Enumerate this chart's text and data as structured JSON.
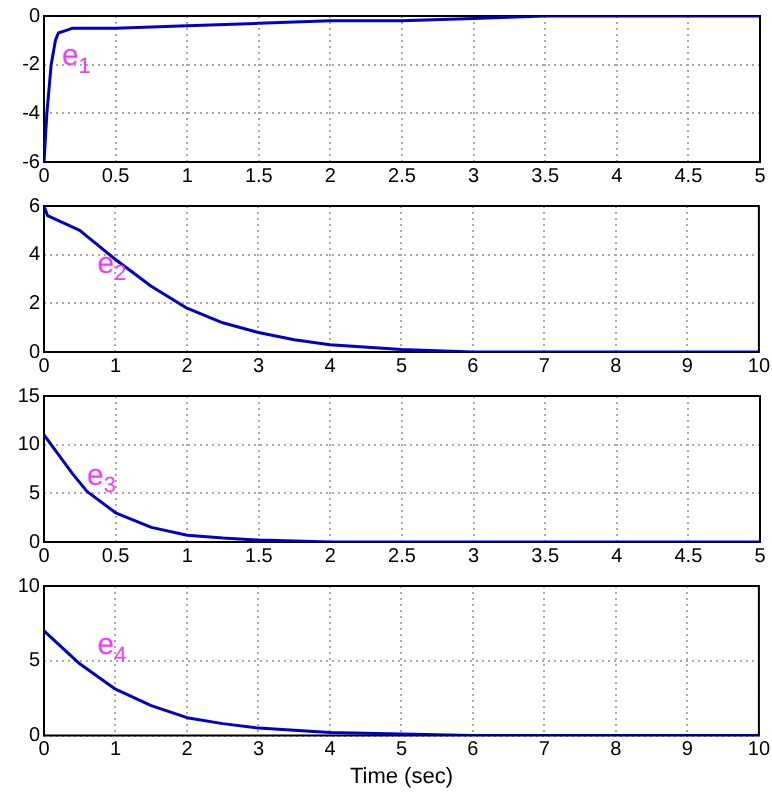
{
  "chart_data": [
    {
      "type": "line",
      "series": [
        {
          "name": "e$_{1}$",
          "color": "#0000cc",
          "x": [
            0,
            0.02,
            0.05,
            0.08,
            0.1,
            0.15,
            0.2,
            0.3,
            0.5,
            1,
            1.5,
            2,
            2.5,
            3,
            3.5,
            4,
            5
          ],
          "values": [
            -6,
            -4,
            -2,
            -1,
            -0.7,
            -0.6,
            -0.5,
            -0.5,
            -0.5,
            -0.4,
            -0.3,
            -0.2,
            -0.2,
            -0.1,
            0,
            0,
            0
          ]
        }
      ],
      "xlim": [
        0,
        5
      ],
      "xticks": [
        0,
        0.5,
        1,
        1.5,
        2,
        2.5,
        3,
        3.5,
        4,
        4.5,
        5
      ],
      "ylim": [
        -6,
        0
      ],
      "yticks": [
        -6,
        -4,
        -2,
        0
      ],
      "grid": true
    },
    {
      "type": "line",
      "series": [
        {
          "name": "e$_{2}$",
          "color": "#0000cc",
          "x": [
            0,
            0.05,
            0.5,
            1,
            1.5,
            2,
            2.5,
            3,
            3.5,
            4,
            5,
            6,
            7,
            8,
            10
          ],
          "values": [
            6,
            5.6,
            5,
            3.8,
            2.7,
            1.8,
            1.2,
            0.8,
            0.5,
            0.3,
            0.1,
            0,
            0,
            0,
            0
          ]
        }
      ],
      "xlim": [
        0,
        10
      ],
      "xticks": [
        0,
        1,
        2,
        3,
        4,
        5,
        6,
        7,
        8,
        9,
        10
      ],
      "ylim": [
        0,
        6
      ],
      "yticks": [
        0,
        2,
        4,
        6
      ],
      "grid": true
    },
    {
      "type": "line",
      "series": [
        {
          "name": "e$_{3}$",
          "color": "#0000cc",
          "x": [
            0,
            0.1,
            0.2,
            0.3,
            0.5,
            0.75,
            1,
            1.25,
            1.5,
            2,
            3,
            5
          ],
          "values": [
            11,
            9,
            7,
            5.2,
            3,
            1.5,
            0.7,
            0.4,
            0.2,
            0,
            0,
            0
          ]
        }
      ],
      "xlim": [
        0,
        5
      ],
      "xticks": [
        0,
        0.5,
        1,
        1.5,
        2,
        2.5,
        3,
        3.5,
        4,
        4.5,
        5
      ],
      "ylim": [
        0,
        15
      ],
      "yticks": [
        0,
        5,
        10,
        15
      ],
      "grid": true
    },
    {
      "type": "line",
      "series": [
        {
          "name": "e$_{4}$",
          "color": "#0000cc",
          "x": [
            0,
            0.5,
            1,
            1.5,
            2,
            2.5,
            3,
            4,
            5,
            6,
            8,
            10
          ],
          "values": [
            7,
            4.8,
            3.1,
            2,
            1.2,
            0.8,
            0.5,
            0.2,
            0.1,
            0,
            0,
            0
          ]
        }
      ],
      "xlim": [
        0,
        10
      ],
      "xticks": [
        0,
        1,
        2,
        3,
        4,
        5,
        6,
        7,
        8,
        9,
        10
      ],
      "ylim": [
        0,
        10
      ],
      "yticks": [
        0,
        5,
        10
      ],
      "grid": true,
      "xlabel": "Time (sec)"
    }
  ]
}
